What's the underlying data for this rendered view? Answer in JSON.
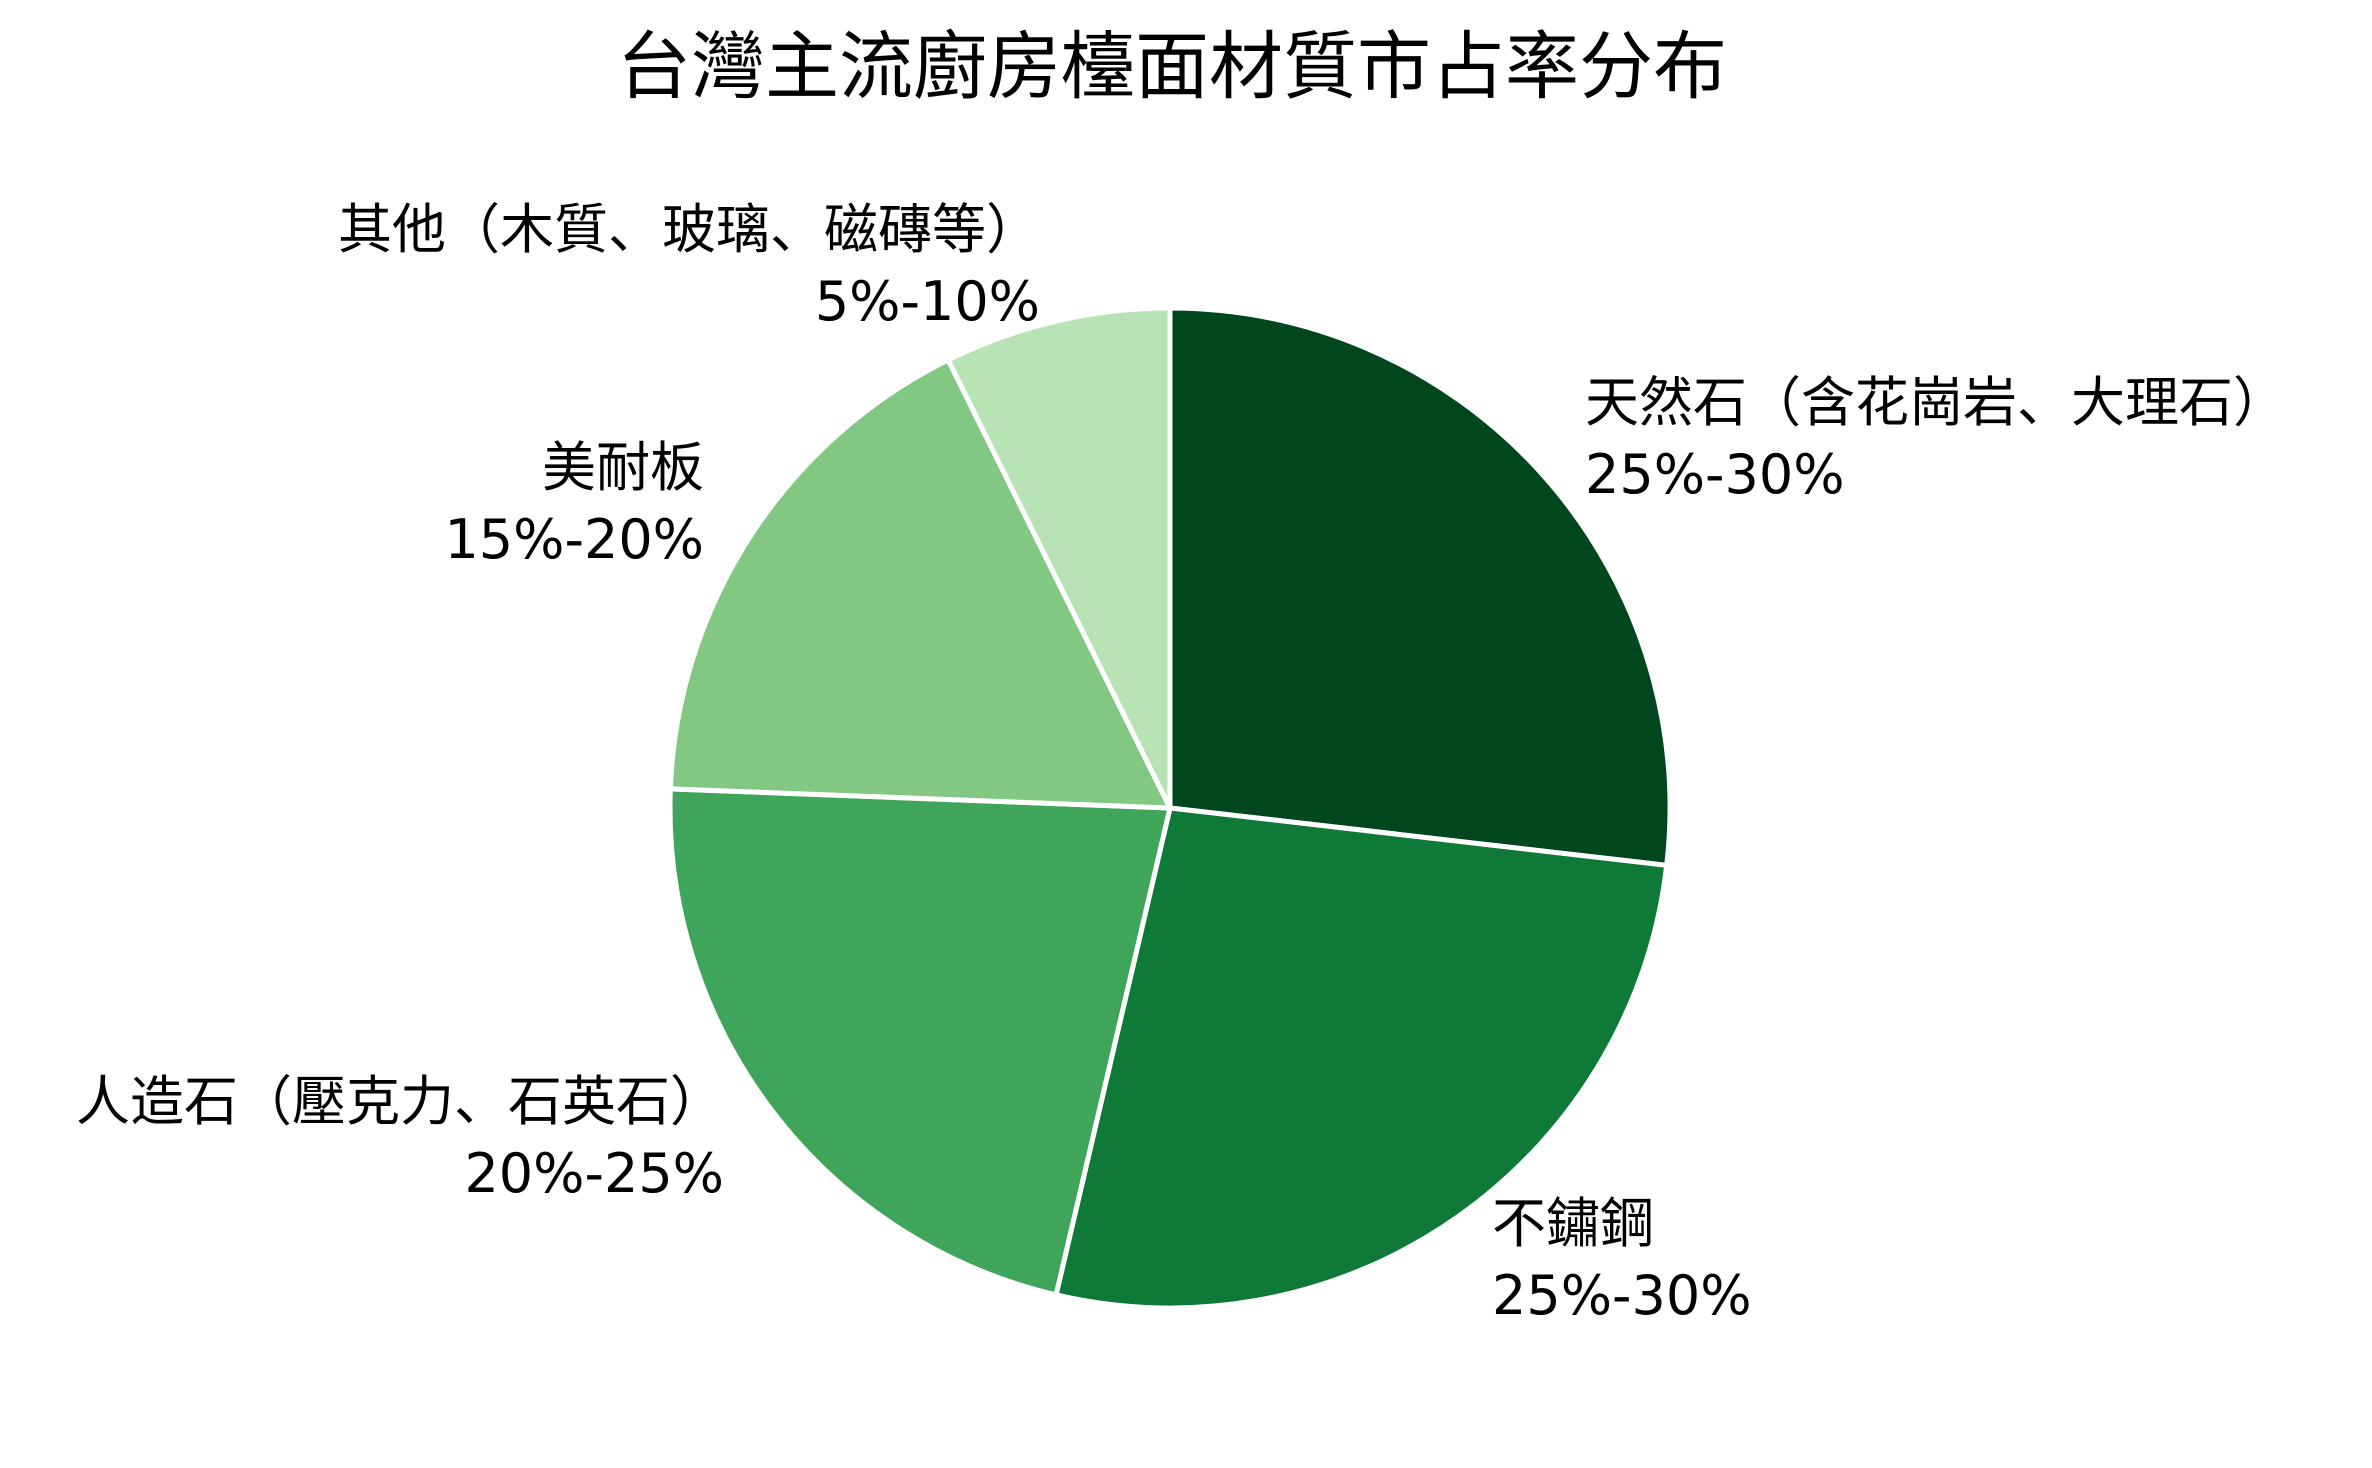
{
  "chart_data": {
    "type": "pie",
    "title": "台灣主流廚房檯面材質市占率分布",
    "start_angle": "12 o'clock, clockwise",
    "categories": [
      "天然石（含花崗岩、大理石）",
      "不鏽鋼",
      "人造石（壓克力、石英石）",
      "美耐板",
      "其他（木質、玻璃、磁磚等）"
    ],
    "ranges": [
      "25%-30%",
      "25%-30%",
      "20%-25%",
      "15%-20%",
      "5%-10%"
    ],
    "values": [
      27.5,
      27.5,
      22.5,
      17.5,
      7.5
    ],
    "colors": [
      "#00471d",
      "#0f7a38",
      "#3ea55b",
      "#82c882",
      "#b8e3b4"
    ],
    "legend": "none (labels placed outside slices)"
  },
  "labels": [
    {
      "name": "天然石（含花崗岩、大理石）",
      "range": "25%-30%"
    },
    {
      "name": "不鏽鋼",
      "range": "25%-30%"
    },
    {
      "name": "人造石（壓克力、石英石）",
      "range": "20%-25%"
    },
    {
      "name": "美耐板",
      "range": "15%-20%"
    },
    {
      "name": "其他（木質、玻璃、磁磚等）",
      "range": "5%-10%"
    }
  ]
}
